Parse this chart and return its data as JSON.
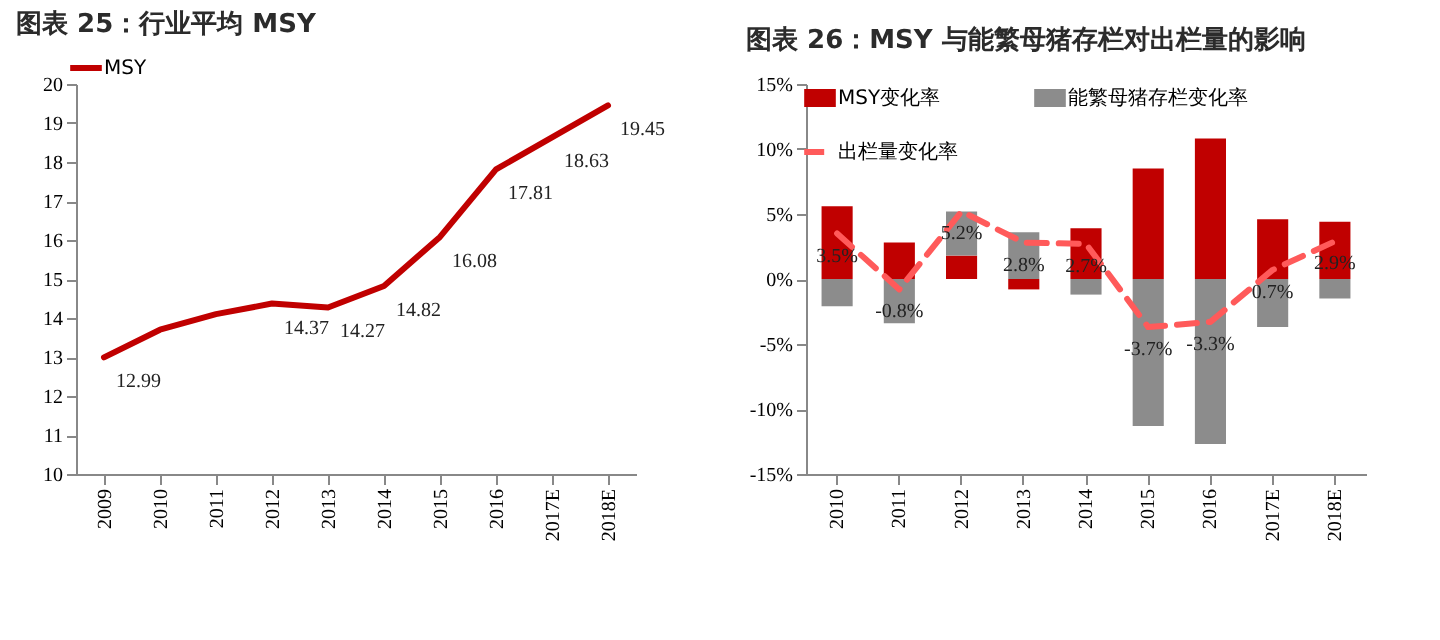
{
  "chart_data": [
    {
      "type": "line",
      "title": "图表 25：行业平均 MSY",
      "categories": [
        "2009",
        "2010",
        "2011",
        "2012",
        "2013",
        "2014",
        "2015",
        "2016",
        "2017E",
        "2018E"
      ],
      "series": [
        {
          "name": "MSY",
          "color": "#c00000",
          "values": [
            12.99,
            13.7,
            14.1,
            14.37,
            14.27,
            14.82,
            16.08,
            17.81,
            18.63,
            19.45
          ],
          "value_labels": [
            "12.99",
            null,
            null,
            "14.37",
            "14.27",
            "14.82",
            "16.08",
            "17.81",
            "18.63",
            "19.45"
          ]
        }
      ],
      "ylim": [
        10,
        20
      ],
      "yticks": [
        10,
        11,
        12,
        13,
        14,
        15,
        16,
        17,
        18,
        19,
        20
      ],
      "grid": false,
      "legend": "top"
    },
    {
      "type": "bar",
      "title": "图表 26：MSY 与能繁母猪存栏对出栏量的影响",
      "stacked": true,
      "categories": [
        "2010",
        "2011",
        "2012",
        "2013",
        "2014",
        "2015",
        "2016",
        "2017E",
        "2018E"
      ],
      "series": [
        {
          "name": "MSY变化率",
          "color": "#c00000",
          "values": [
            5.6,
            2.8,
            1.8,
            -0.8,
            3.9,
            8.5,
            10.8,
            4.6,
            4.4
          ]
        },
        {
          "name": "能繁母猪存栏变化率",
          "color": "#8c8c8c",
          "values": [
            -2.1,
            -3.4,
            3.4,
            3.6,
            -1.2,
            -11.3,
            -12.7,
            -3.7,
            -1.5
          ]
        },
        {
          "name": "出栏量变化率",
          "type": "line",
          "line_style": "dashed",
          "color": "#ff5a5a",
          "values": [
            3.5,
            -0.8,
            5.2,
            2.8,
            2.7,
            -3.7,
            -3.3,
            0.7,
            2.9
          ],
          "value_labels": [
            "3.5%",
            "-0.8%",
            "5.2%",
            "2.8%",
            "2.7%",
            "-3.7%",
            "-3.3%",
            "0.7%",
            "2.9%"
          ]
        }
      ],
      "ylim": [
        -15,
        15
      ],
      "yticks": [
        {
          "value": -15,
          "label": "-15%"
        },
        {
          "value": -10,
          "label": "-10%"
        },
        {
          "value": -5,
          "label": "-5%"
        },
        {
          "value": 0,
          "label": "0%"
        },
        {
          "value": 5,
          "label": "5%"
        },
        {
          "value": 10,
          "label": "10%"
        },
        {
          "value": 15,
          "label": "15%"
        }
      ],
      "grid": false,
      "legend": "top left"
    }
  ]
}
